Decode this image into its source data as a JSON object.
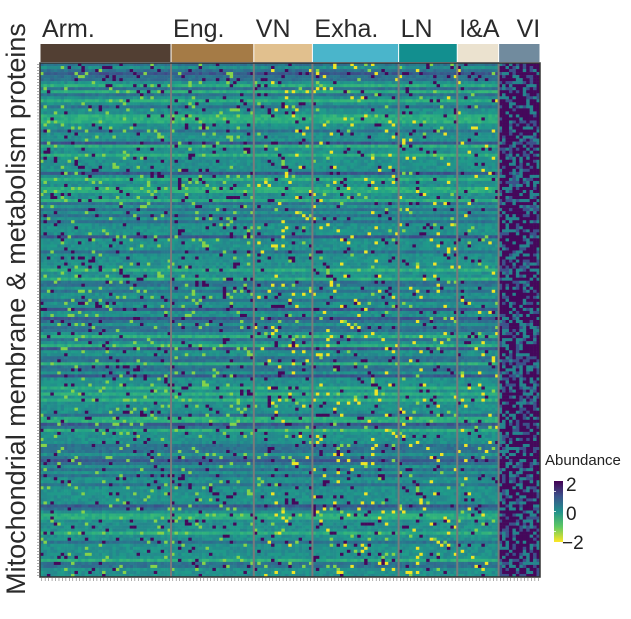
{
  "chart_data": {
    "type": "heatmap",
    "title": "",
    "ylabel": "Mitochondrial membrane & metabolism proteins",
    "xlabel": "",
    "groups": [
      {
        "label": "Arm.",
        "color": "#523f33",
        "columns": 38
      },
      {
        "label": "Eng.",
        "color": "#a57b46",
        "columns": 24
      },
      {
        "label": "VN",
        "color": "#e1c08e",
        "columns": 17
      },
      {
        "label": "Exha.",
        "color": "#4ab5cb",
        "columns": 25
      },
      {
        "label": "LN",
        "color": "#128f8f",
        "columns": 17
      },
      {
        "label": "I&A",
        "color": "#ebe2cf",
        "columns": 12
      },
      {
        "label": "VI",
        "color": "#718b9e",
        "columns": 12
      }
    ],
    "rows": 170,
    "legend": {
      "title": "Abundance",
      "ticks": [
        2,
        0,
        -2
      ],
      "range": [
        -2.4,
        2.4
      ],
      "colormap": "viridis",
      "placement": "right"
    },
    "colors": {
      "divider": "#7a7a7a",
      "frame": "#333333"
    }
  }
}
